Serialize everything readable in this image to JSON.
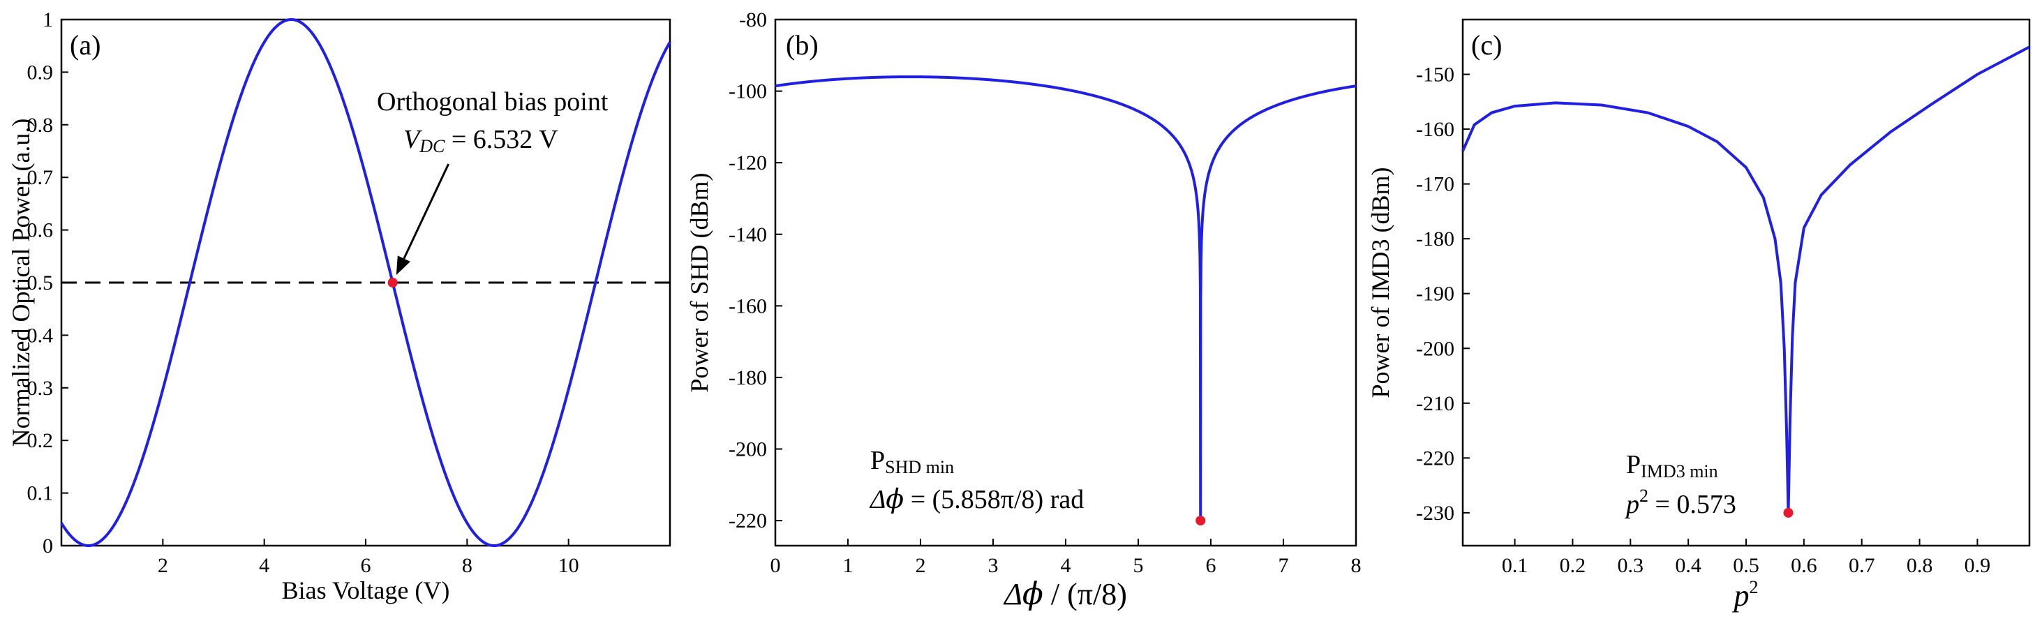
{
  "chart_data": [
    {
      "type": "line",
      "panel_label": "(a)",
      "xlabel": "Bias Voltage (V)",
      "ylabel": "Normalized Optical Power (a.u.)",
      "xlim": [
        0,
        12
      ],
      "ylim": [
        0,
        1
      ],
      "x_ticks": [
        2,
        4,
        6,
        8,
        10
      ],
      "x_tick_labels": [
        "2",
        "4",
        "6",
        "8",
        "10"
      ],
      "y_ticks": [
        0,
        0.1,
        0.2,
        0.3,
        0.4,
        0.5,
        0.6,
        0.7,
        0.8,
        0.9,
        1
      ],
      "y_tick_labels": [
        "0",
        "0.1",
        "0.2",
        "0.3",
        "0.4",
        "0.5",
        "0.6",
        "0.7",
        "0.8",
        "0.9",
        "1"
      ],
      "curve": {
        "shape": "raised-cosine",
        "minima_x": [
          0.532,
          8.532
        ],
        "maxima_x": [
          4.532
        ],
        "min_value": 0,
        "max_value": 1,
        "period": 8
      },
      "reference_line": {
        "y": 0.5,
        "style": "dashed"
      },
      "marker": {
        "x": 6.532,
        "y": 0.5,
        "color": "#e8192c"
      },
      "annotation": {
        "line1": "Orthogonal bias point",
        "var_main": "V",
        "var_sub": "DC",
        "line2_rest": " = 6.532 V"
      }
    },
    {
      "type": "line",
      "panel_label": "(b)",
      "xlabel_symbol": "Δ𝜙",
      "xlabel_rest": " / (π/8)",
      "ylabel": "Power of SHD (dBm)",
      "xlim": [
        0,
        8
      ],
      "ylim": [
        -227,
        -80
      ],
      "x_ticks": [
        0,
        1,
        2,
        3,
        4,
        5,
        6,
        7,
        8
      ],
      "x_tick_labels": [
        "0",
        "1",
        "2",
        "3",
        "4",
        "5",
        "6",
        "7",
        "8"
      ],
      "y_ticks": [
        -220,
        -200,
        -180,
        -160,
        -140,
        -120,
        -100,
        -80
      ],
      "y_tick_labels": [
        "-220",
        "-200",
        "-180",
        "-160",
        "-140",
        "-120",
        "-100",
        "-80"
      ],
      "curve": {
        "shape": "log-sine-null",
        "null_x": 5.858,
        "peak_x": 1.858,
        "peak_value": -96,
        "floor_value": -220,
        "period": 8
      },
      "marker": {
        "x": 5.858,
        "y": -220,
        "color": "#e8192c"
      },
      "annotation": {
        "line1_main": "P",
        "line1_sub": "SHD min",
        "line2_symbol": "Δ𝜙",
        "line2_rest": " = (5.858π/8) rad"
      }
    },
    {
      "type": "line",
      "panel_label": "(c)",
      "xlabel_main": "p",
      "xlabel_sup": "2",
      "ylabel": "Power of IMD3 (dBm)",
      "xlim": [
        0.01,
        0.99
      ],
      "ylim": [
        -236,
        -140
      ],
      "x_ticks": [
        0.1,
        0.2,
        0.3,
        0.4,
        0.5,
        0.6,
        0.7,
        0.8,
        0.9
      ],
      "x_tick_labels": [
        "0.1",
        "0.2",
        "0.3",
        "0.4",
        "0.5",
        "0.6",
        "0.7",
        "0.8",
        "0.9"
      ],
      "y_ticks": [
        -230,
        -220,
        -210,
        -200,
        -190,
        -180,
        -170,
        -160,
        -150
      ],
      "y_tick_labels": [
        "-230",
        "-220",
        "-210",
        "-200",
        "-190",
        "-180",
        "-170",
        "-160",
        "-150"
      ],
      "curve": {
        "shape": "log-abs-null",
        "null_x": 0.573,
        "samples": [
          [
            0.01,
            -164
          ],
          [
            0.03,
            -159.2
          ],
          [
            0.06,
            -157
          ],
          [
            0.1,
            -155.8
          ],
          [
            0.17,
            -155.2
          ],
          [
            0.25,
            -155.6
          ],
          [
            0.33,
            -157
          ],
          [
            0.4,
            -159.5
          ],
          [
            0.45,
            -162.3
          ],
          [
            0.5,
            -167
          ],
          [
            0.53,
            -172.5
          ],
          [
            0.55,
            -180
          ],
          [
            0.56,
            -188
          ],
          [
            0.566,
            -200
          ],
          [
            0.57,
            -215
          ],
          [
            0.573,
            -230
          ],
          [
            0.576,
            -213
          ],
          [
            0.58,
            -198
          ],
          [
            0.585,
            -188
          ],
          [
            0.6,
            -178
          ],
          [
            0.63,
            -172
          ],
          [
            0.68,
            -166.5
          ],
          [
            0.75,
            -160.5
          ],
          [
            0.82,
            -155.5
          ],
          [
            0.9,
            -150
          ],
          [
            0.99,
            -145
          ]
        ]
      },
      "marker": {
        "x": 0.573,
        "y": -230,
        "color": "#e8192c"
      },
      "annotation": {
        "line1_main": "P",
        "line1_sub": "IMD3 min",
        "line2_main": "p",
        "line2_sup": "2",
        "line2_rest": " = 0.573"
      }
    }
  ]
}
